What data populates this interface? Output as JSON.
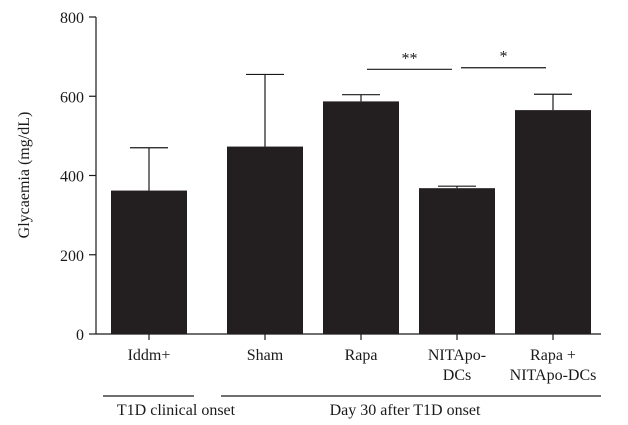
{
  "chart_data": {
    "type": "bar",
    "ylabel": "Glycaemia (mg/dL)",
    "ylim": [
      0,
      800
    ],
    "yticks": [
      0,
      200,
      400,
      600,
      800
    ],
    "grid": false,
    "colors": {
      "bar": "#231f20",
      "axis": "#1a1a1a"
    },
    "bars": [
      {
        "label_lines": [
          "Iddm+"
        ],
        "value": 362,
        "error": 470
      },
      {
        "label_lines": [
          "Sham"
        ],
        "value": 473,
        "error": 655
      },
      {
        "label_lines": [
          "Rapa"
        ],
        "value": 587,
        "error": 604
      },
      {
        "label_lines": [
          "NITApo-",
          "DCs"
        ],
        "value": 368,
        "error": 373
      },
      {
        "label_lines": [
          "Rapa +",
          "NITApo-DCs"
        ],
        "value": 565,
        "error": 605
      }
    ],
    "groups": [
      {
        "label": "T1D clinical onset",
        "from_bar": 0,
        "to_bar": 0
      },
      {
        "label": "Day 30 after T1D onset",
        "from_bar": 1,
        "to_bar": 4
      }
    ],
    "significance": [
      {
        "text": "**",
        "from_bar": 2,
        "to_bar": 3,
        "y": 668
      },
      {
        "text": "*",
        "from_bar": 3,
        "to_bar": 4,
        "y": 672
      }
    ]
  }
}
